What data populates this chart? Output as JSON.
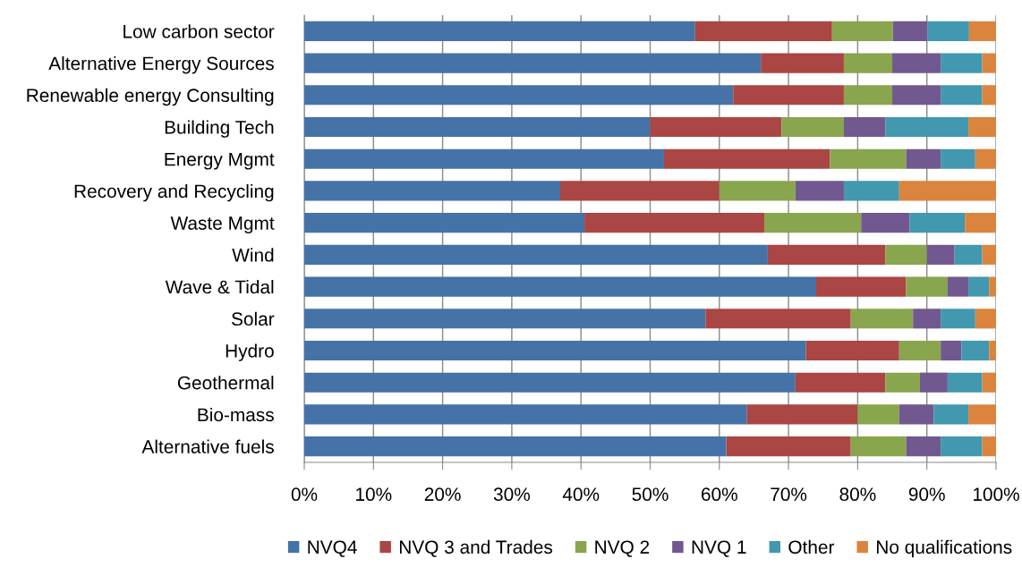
{
  "chart_data": {
    "type": "bar",
    "orientation": "horizontal",
    "stacked": true,
    "categories": [
      "Low carbon sector",
      "Alternative Energy Sources",
      "Renewable energy Consulting",
      "Building Tech",
      "Energy Mgmt",
      "Recovery and Recycling",
      "Waste Mgmt",
      "Wind",
      "Wave & Tidal",
      "Solar",
      "Hydro",
      "Geothermal",
      "Bio-mass",
      "Alternative fuels"
    ],
    "series": [
      {
        "name": "NVQ4",
        "color": "#4572a7",
        "values": [
          56.5,
          66,
          62,
          50,
          52,
          37,
          40.5,
          67,
          74,
          58,
          72.5,
          71,
          64,
          61
        ]
      },
      {
        "name": "NVQ 3 and Trades",
        "color": "#aa4643",
        "values": [
          19.8,
          12,
          16,
          19,
          24,
          23,
          26,
          17,
          13,
          21,
          13.5,
          13,
          16,
          18
        ]
      },
      {
        "name": "NVQ 2",
        "color": "#89a54e",
        "values": [
          8.8,
          7,
          7,
          9,
          11,
          11,
          14,
          6,
          6,
          9,
          6,
          5,
          6,
          8
        ]
      },
      {
        "name": "NVQ 1",
        "color": "#71588f",
        "values": [
          5,
          7,
          7,
          6,
          5,
          7,
          7,
          4,
          3,
          4,
          3,
          4,
          5,
          5
        ]
      },
      {
        "name": "Other",
        "color": "#4198af",
        "values": [
          6,
          6,
          6,
          12,
          5,
          8,
          8,
          4,
          3,
          5,
          4,
          5,
          5,
          6
        ]
      },
      {
        "name": "No qualifications",
        "color": "#db843d",
        "values": [
          3.9,
          2,
          2,
          4,
          3,
          14,
          4.5,
          2,
          1,
          3,
          1,
          2,
          4,
          2
        ]
      }
    ],
    "xlim": [
      0,
      100
    ],
    "xticks": [
      {
        "value": 0,
        "label": "0%"
      },
      {
        "value": 10,
        "label": "10%"
      },
      {
        "value": 20,
        "label": "20%"
      },
      {
        "value": 30,
        "label": "30%"
      },
      {
        "value": 40,
        "label": "40%"
      },
      {
        "value": 50,
        "label": "50%"
      },
      {
        "value": 60,
        "label": "60%"
      },
      {
        "value": 70,
        "label": "70%"
      },
      {
        "value": 80,
        "label": "80%"
      },
      {
        "value": 90,
        "label": "90%"
      },
      {
        "value": 100,
        "label": "100%"
      }
    ],
    "grid": "x",
    "legend": "bottom"
  }
}
